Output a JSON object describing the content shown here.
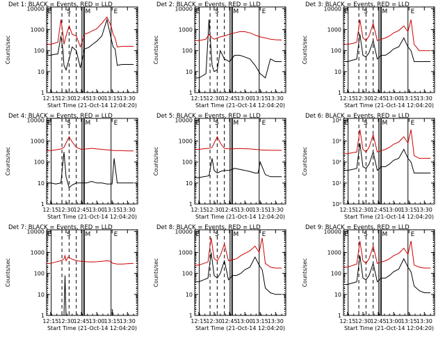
{
  "figure": {
    "time_label": "Start Time (21-Oct-14 12:04:20)",
    "ylabel": "Counts/sec",
    "event_letters": [
      "E",
      "S",
      "M",
      "E"
    ],
    "colors": {
      "events": "#000000",
      "lld": "#cc0000",
      "axes": "#000000",
      "background": "#ffffff"
    }
  },
  "chart_data": [
    {
      "type": "line",
      "title": "Det 1: BLACK = Events, RED = LLD",
      "xlabel": "Start Time (21-Oct-14 12:04:20)",
      "ylabel": "Counts/sec",
      "xlim": [
        "12:11",
        "13:40"
      ],
      "x_ticks": [
        "12:15",
        "12:30",
        "12:45",
        "13:00",
        "13:15",
        "13:30"
      ],
      "ylim": [
        1,
        12000
      ],
      "yscale": "log",
      "y_ticks": [
        "1",
        "10",
        "100",
        "1000",
        "10000"
      ],
      "x": [
        "12:11",
        "12:15",
        "12:18",
        "12:22",
        "12:25",
        "12:27",
        "12:28",
        "12:30",
        "12:33",
        "12:36",
        "12:40",
        "12:44",
        "12:48",
        "12:52",
        "12:56",
        "13:00",
        "13:05",
        "13:10",
        "13:14",
        "13:16",
        "13:18",
        "13:20",
        "13:25",
        "13:30",
        "13:36"
      ],
      "series": [
        {
          "name": "Events",
          "color": "#000000",
          "values": [
            60,
            60,
            65,
            70,
            500,
            100,
            20,
            12,
            40,
            150,
            100,
            15,
            120,
            140,
            200,
            280,
            500,
            3000,
            400,
            150,
            120,
            20,
            22,
            22,
            22
          ]
        },
        {
          "name": "LLD",
          "color": "#cc0000",
          "values": [
            200,
            200,
            220,
            250,
            3000,
            600,
            200,
            500,
            1500,
            600,
            500,
            150,
            600,
            700,
            900,
            1100,
            2000,
            4000,
            1500,
            600,
            400,
            150,
            160,
            160,
            160
          ]
        }
      ]
    },
    {
      "type": "line",
      "title": "Det 2: BLACK = Events, RED = LLD",
      "xlabel": "Start Time (21-Oct-14 12:04:20)",
      "ylabel": "Counts/sec",
      "xlim": [
        "12:11",
        "13:40"
      ],
      "x_ticks": [
        "12:15",
        "12:30",
        "12:45",
        "13:00",
        "13:15",
        "13:30"
      ],
      "ylim": [
        1,
        12000
      ],
      "yscale": "log",
      "y_ticks": [
        "1",
        "10",
        "100",
        "1000",
        "10000"
      ],
      "x": [
        "12:11",
        "12:15",
        "12:18",
        "12:22",
        "12:25",
        "12:28",
        "12:30",
        "12:33",
        "12:36",
        "12:40",
        "12:45",
        "12:50",
        "12:55",
        "13:00",
        "13:05",
        "13:10",
        "13:15",
        "13:20",
        "13:25",
        "13:30",
        "13:36"
      ],
      "series": [
        {
          "name": "Events",
          "color": "#000000",
          "values": [
            5,
            5,
            6,
            8,
            3000,
            20,
            10,
            12,
            100,
            40,
            30,
            60,
            60,
            50,
            40,
            20,
            8,
            5,
            40,
            30,
            30
          ]
        },
        {
          "name": "LLD",
          "color": "#cc0000",
          "values": [
            300,
            300,
            320,
            350,
            600,
            400,
            350,
            400,
            450,
            500,
            600,
            700,
            800,
            800,
            700,
            550,
            450,
            400,
            350,
            330,
            320
          ]
        }
      ]
    },
    {
      "type": "line",
      "title": "Det 3: BLACK = Events, RED = LLD",
      "xlabel": "Start Time (21-Oct-14 12:04:20)",
      "ylabel": "Counts/sec",
      "xlim": [
        "12:11",
        "13:40"
      ],
      "x_ticks": [
        "12:15",
        "12:30",
        "12:45",
        "13:00",
        "13:15",
        "13:30"
      ],
      "ylim": [
        1,
        12000
      ],
      "yscale": "log",
      "y_ticks": [
        "1",
        "10",
        "100",
        "1000",
        "10000"
      ],
      "x": [
        "12:11",
        "12:15",
        "12:20",
        "12:24",
        "12:27",
        "12:30",
        "12:33",
        "12:36",
        "12:40",
        "12:44",
        "12:48",
        "12:52",
        "12:56",
        "13:00",
        "13:05",
        "13:10",
        "13:14",
        "13:17",
        "13:20",
        "13:25",
        "13:30",
        "13:36"
      ],
      "series": [
        {
          "name": "Events",
          "color": "#000000",
          "values": [
            30,
            30,
            35,
            40,
            600,
            60,
            50,
            80,
            300,
            40,
            60,
            60,
            80,
            120,
            150,
            400,
            150,
            100,
            30,
            30,
            30,
            30
          ]
        },
        {
          "name": "LLD",
          "color": "#cc0000",
          "values": [
            200,
            200,
            220,
            250,
            3000,
            400,
            300,
            500,
            2000,
            300,
            350,
            400,
            500,
            700,
            900,
            1500,
            800,
            3000,
            200,
            100,
            100,
            100
          ]
        }
      ]
    },
    {
      "type": "line",
      "title": "Det 4: BLACK = Events, RED = LLD",
      "xlabel": "Start Time (21-Oct-14 12:04:20)",
      "ylabel": "Counts/sec",
      "xlim": [
        "12:11",
        "13:40"
      ],
      "x_ticks": [
        "12:15",
        "12:30",
        "12:45",
        "13:00",
        "13:15",
        "13:30"
      ],
      "ylim": [
        1,
        12000
      ],
      "yscale": "log",
      "y_ticks": [
        "1",
        "10",
        "100",
        "1000",
        "10000"
      ],
      "x": [
        "12:11",
        "12:15",
        "12:20",
        "12:25",
        "12:28",
        "12:30",
        "12:33",
        "12:36",
        "12:40",
        "12:45",
        "12:50",
        "12:55",
        "13:00",
        "13:05",
        "13:10",
        "13:15",
        "13:17",
        "13:20",
        "13:25",
        "13:30",
        "13:36"
      ],
      "series": [
        {
          "name": "Events",
          "color": "#000000",
          "values": [
            10,
            10,
            9,
            10,
            300,
            20,
            6,
            8,
            10,
            10,
            10,
            12,
            10,
            10,
            9,
            9,
            150,
            10,
            10,
            10,
            10
          ]
        },
        {
          "name": "LLD",
          "color": "#cc0000",
          "values": [
            350,
            350,
            380,
            420,
            500,
            800,
            1600,
            900,
            500,
            400,
            420,
            450,
            420,
            400,
            380,
            360,
            350,
            350,
            350,
            340,
            340
          ]
        }
      ]
    },
    {
      "type": "line",
      "title": "Det 5: BLACK = Events, RED = LLD",
      "xlabel": "Start Time (21-Oct-14 12:04:20)",
      "ylabel": "Counts/sec",
      "xlim": [
        "12:11",
        "13:40"
      ],
      "x_ticks": [
        "12:15",
        "12:30",
        "12:45",
        "13:00",
        "13:15",
        "13:30"
      ],
      "ylim": [
        1,
        12000
      ],
      "yscale": "log",
      "y_ticks": [
        "1",
        "10",
        "100",
        "1000",
        "10000"
      ],
      "x": [
        "12:11",
        "12:15",
        "12:20",
        "12:25",
        "12:28",
        "12:30",
        "12:33",
        "12:36",
        "12:40",
        "12:45",
        "12:50",
        "12:55",
        "13:00",
        "13:05",
        "13:10",
        "13:13",
        "13:15",
        "13:20",
        "13:25",
        "13:30",
        "13:36"
      ],
      "series": [
        {
          "name": "Events",
          "color": "#000000",
          "values": [
            18,
            18,
            20,
            22,
            150,
            40,
            30,
            35,
            40,
            40,
            50,
            45,
            40,
            35,
            30,
            30,
            100,
            25,
            20,
            20,
            20
          ]
        },
        {
          "name": "LLD",
          "color": "#cc0000",
          "values": [
            400,
            400,
            430,
            450,
            500,
            800,
            1600,
            800,
            450,
            420,
            430,
            440,
            430,
            420,
            400,
            390,
            380,
            370,
            360,
            360,
            360
          ]
        }
      ]
    },
    {
      "type": "line",
      "title": "Det 6: BLACK = Events, RED = LLD",
      "xlabel": "Start Time (21-Oct-14 12:04:20)",
      "ylabel": "Counts/sec",
      "xlim": [
        "12:11",
        "13:40"
      ],
      "x_ticks": [
        "12:15",
        "12:30",
        "12:45",
        "13:00",
        "13:15",
        "13:30"
      ],
      "ylim": [
        1,
        12000
      ],
      "yscale": "log",
      "y_ticks": [
        "10⁰",
        "10¹",
        "10²",
        "10³",
        "10⁴"
      ],
      "x": [
        "12:11",
        "12:15",
        "12:20",
        "12:24",
        "12:27",
        "12:30",
        "12:33",
        "12:36",
        "12:40",
        "12:44",
        "12:48",
        "12:52",
        "12:56",
        "13:00",
        "13:05",
        "13:10",
        "13:14",
        "13:17",
        "13:20",
        "13:25",
        "13:30",
        "13:36"
      ],
      "series": [
        {
          "name": "Events",
          "color": "#000000",
          "values": [
            40,
            40,
            45,
            50,
            800,
            60,
            50,
            80,
            300,
            40,
            60,
            60,
            80,
            120,
            150,
            400,
            150,
            100,
            30,
            30,
            30,
            30
          ]
        },
        {
          "name": "LLD",
          "color": "#cc0000",
          "values": [
            250,
            250,
            280,
            300,
            3500,
            400,
            300,
            500,
            2000,
            300,
            350,
            400,
            500,
            700,
            900,
            1600,
            800,
            3500,
            200,
            150,
            150,
            150
          ]
        }
      ]
    },
    {
      "type": "line",
      "title": "Det 7: BLACK = Events, RED = LLD",
      "xlabel": "Start Time (21-Oct-14 12:04:20)",
      "ylabel": "Counts/sec",
      "xlim": [
        "12:11",
        "13:40"
      ],
      "x_ticks": [
        "12:15",
        "12:30",
        "12:45",
        "13:00",
        "13:15",
        "13:30"
      ],
      "ylim": [
        1,
        12000
      ],
      "yscale": "log",
      "y_ticks": [
        "1",
        "10",
        "100",
        "1000",
        "10000"
      ],
      "x": [
        "12:11",
        "12:15",
        "12:20",
        "12:25",
        "12:27",
        "12:28",
        "12:29",
        "12:30",
        "12:32",
        "12:35",
        "12:40",
        "12:45",
        "12:50",
        "12:55",
        "13:00",
        "13:05",
        "13:10",
        "13:14",
        "13:15",
        "13:16",
        "13:20",
        "13:25",
        "13:30",
        "13:36"
      ],
      "series": [
        {
          "name": "Events",
          "color": "#000000",
          "values": [
            null,
            null,
            null,
            null,
            null,
            1,
            80,
            1,
            null,
            null,
            null,
            null,
            null,
            null,
            null,
            null,
            null,
            null,
            2,
            1,
            null,
            null,
            null,
            null
          ]
        },
        {
          "name": "LLD",
          "color": "#cc0000",
          "values": [
            300,
            300,
            350,
            400,
            450,
            500,
            700,
            400,
            600,
            500,
            400,
            380,
            360,
            350,
            360,
            380,
            400,
            380,
            320,
            300,
            280,
            280,
            290,
            300
          ]
        }
      ]
    },
    {
      "type": "line",
      "title": "Det 8: BLACK = Events, RED = LLD",
      "xlabel": "Start Time (21-Oct-14 12:04:20)",
      "ylabel": "Counts/sec",
      "xlim": [
        "12:11",
        "13:40"
      ],
      "x_ticks": [
        "12:15",
        "12:30",
        "12:45",
        "13:00",
        "13:15",
        "13:30"
      ],
      "ylim": [
        1,
        12000
      ],
      "yscale": "log",
      "y_ticks": [
        "1",
        "10",
        "100",
        "1000",
        "10000"
      ],
      "x": [
        "12:11",
        "12:15",
        "12:20",
        "12:24",
        "12:27",
        "12:30",
        "12:33",
        "12:36",
        "12:40",
        "12:44",
        "12:48",
        "12:52",
        "12:56",
        "13:00",
        "13:05",
        "13:10",
        "13:14",
        "13:17",
        "13:20",
        "13:25",
        "13:30",
        "13:36"
      ],
      "series": [
        {
          "name": "Events",
          "color": "#000000",
          "values": [
            40,
            40,
            50,
            60,
            1000,
            80,
            60,
            100,
            400,
            50,
            80,
            80,
            100,
            150,
            200,
            600,
            250,
            150,
            20,
            12,
            10,
            10
          ]
        },
        {
          "name": "LLD",
          "color": "#cc0000",
          "values": [
            250,
            250,
            300,
            350,
            5000,
            500,
            400,
            700,
            2500,
            400,
            450,
            500,
            700,
            900,
            1200,
            2000,
            1000,
            5000,
            300,
            200,
            180,
            180
          ]
        }
      ]
    },
    {
      "type": "line",
      "title": "Det 9: BLACK = Events, RED = LLD",
      "xlabel": "Start Time (21-Oct-14 12:04:20)",
      "ylabel": "Counts/sec",
      "xlim": [
        "12:11",
        "13:40"
      ],
      "x_ticks": [
        "12:15",
        "12:30",
        "12:45",
        "13:00",
        "13:15",
        "13:30"
      ],
      "ylim": [
        1,
        12000
      ],
      "yscale": "log",
      "y_ticks": [
        "1",
        "10",
        "100",
        "1000",
        "10000"
      ],
      "x": [
        "12:11",
        "12:15",
        "12:20",
        "12:24",
        "12:27",
        "12:30",
        "12:33",
        "12:36",
        "12:40",
        "12:44",
        "12:48",
        "12:52",
        "12:56",
        "13:00",
        "13:05",
        "13:10",
        "13:14",
        "13:17",
        "13:20",
        "13:25",
        "13:30",
        "13:36"
      ],
      "series": [
        {
          "name": "Events",
          "color": "#000000",
          "values": [
            30,
            30,
            35,
            40,
            700,
            60,
            50,
            80,
            300,
            40,
            60,
            60,
            80,
            120,
            160,
            500,
            200,
            120,
            25,
            15,
            12,
            12
          ]
        },
        {
          "name": "LLD",
          "color": "#cc0000",
          "values": [
            200,
            200,
            240,
            280,
            3500,
            400,
            300,
            500,
            2000,
            300,
            350,
            400,
            500,
            700,
            900,
            1600,
            800,
            3500,
            250,
            200,
            180,
            180
          ]
        }
      ]
    }
  ]
}
